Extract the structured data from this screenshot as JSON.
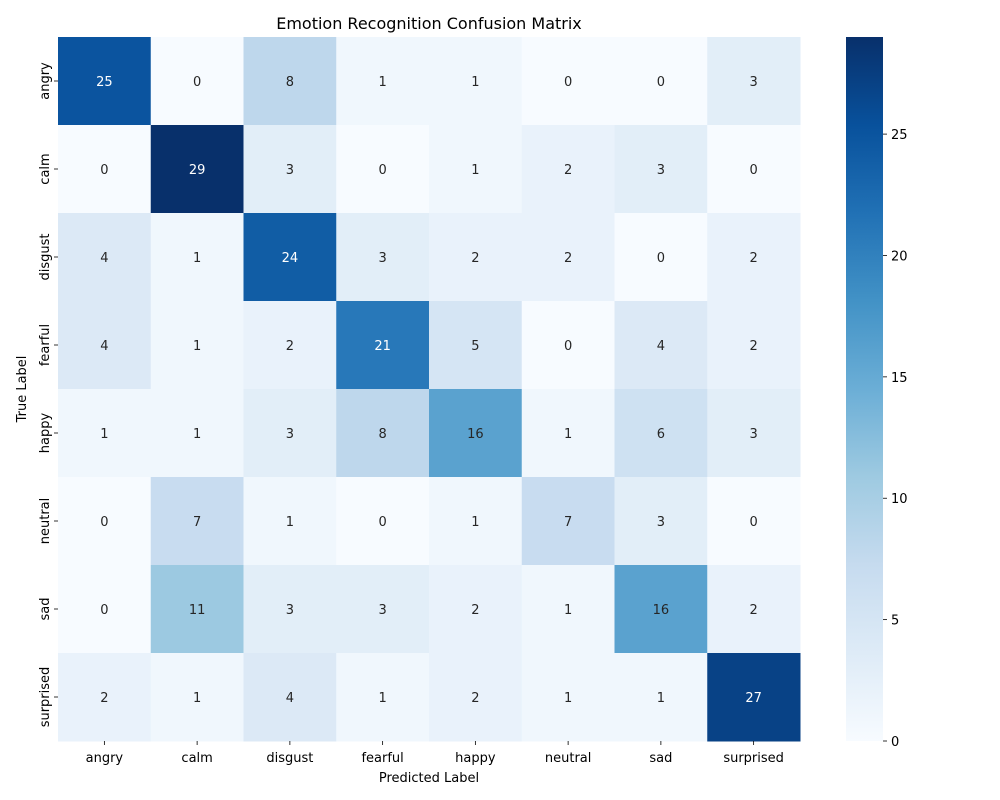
{
  "chart_data": {
    "type": "heatmap",
    "title": "Emotion Recognition Confusion Matrix",
    "xlabel": "Predicted Label",
    "ylabel": "True Label",
    "x_categories": [
      "angry",
      "calm",
      "disgust",
      "fearful",
      "happy",
      "neutral",
      "sad",
      "surprised"
    ],
    "y_categories": [
      "angry",
      "calm",
      "disgust",
      "fearful",
      "happy",
      "neutral",
      "sad",
      "surprised"
    ],
    "values": [
      [
        25,
        0,
        8,
        1,
        1,
        0,
        0,
        3
      ],
      [
        0,
        29,
        3,
        0,
        1,
        2,
        3,
        0
      ],
      [
        4,
        1,
        24,
        3,
        2,
        2,
        0,
        2
      ],
      [
        4,
        1,
        2,
        21,
        5,
        0,
        4,
        2
      ],
      [
        1,
        1,
        3,
        8,
        16,
        1,
        6,
        3
      ],
      [
        0,
        7,
        1,
        0,
        1,
        7,
        3,
        0
      ],
      [
        0,
        11,
        3,
        3,
        2,
        1,
        16,
        2
      ],
      [
        2,
        1,
        4,
        1,
        2,
        1,
        1,
        27
      ]
    ],
    "colorbar": {
      "min": 0,
      "max": 29,
      "ticks": [
        0,
        5,
        10,
        15,
        20,
        25
      ],
      "colormap": "Blues"
    },
    "colors": {
      "low": "#f7fbff",
      "high": "#08306b"
    }
  }
}
